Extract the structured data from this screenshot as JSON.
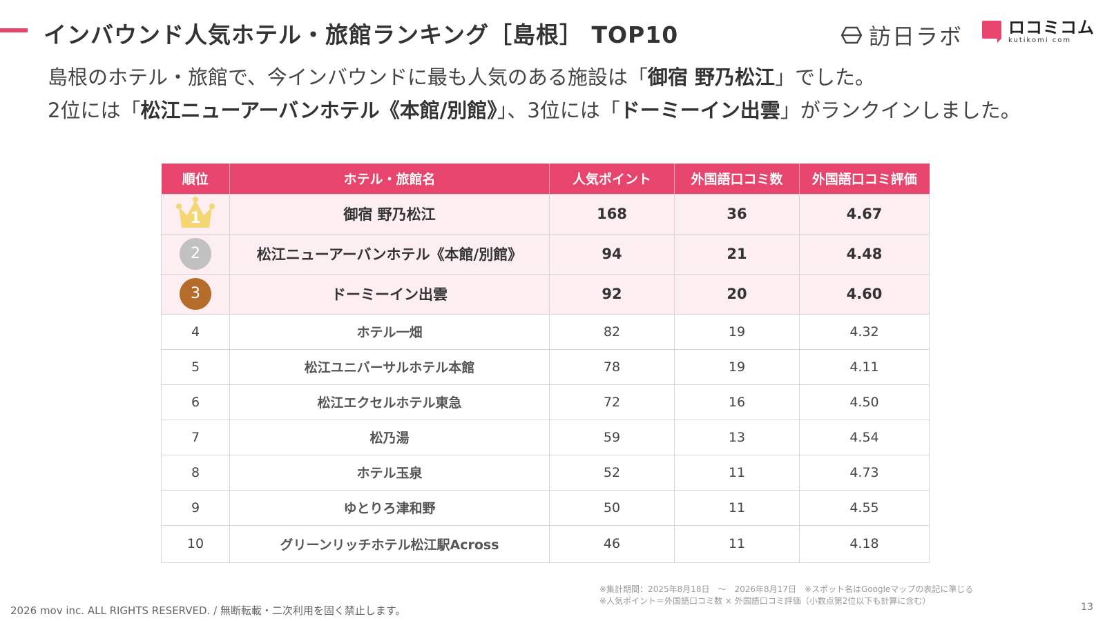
{
  "title": "インバウンド人気ホテル・旅館ランキング［島根］ TOP10",
  "logo_houninchi": "訪日ラボ",
  "logo_kutikomi": {
    "main": "ロコミコム",
    "sub": "kutikomi com"
  },
  "intro": {
    "line1_prefix": "島根のホテル・旅館で、今インバウンドに最も人気のある施設は「",
    "first_place": "御宿 野乃松江",
    "line1_suffix": "」でした。",
    "line2_prefix": "2位には「",
    "second_place": "松江ニューアーバンホテル《本館/別館》",
    "line2_mid": "」、3位には「",
    "third_place": "ドーミーイン出雲",
    "line2_suffix": "」がランクインしました。"
  },
  "table": {
    "headers": [
      "順位",
      "ホテル・旅館名",
      "人気ポイント",
      "外国語口コミ数",
      "外国語口コミ評価"
    ],
    "rows": [
      {
        "rank": "1",
        "name": "御宿 野乃松江",
        "points": "168",
        "reviews": "36",
        "rating": "4.67"
      },
      {
        "rank": "2",
        "name": "松江ニューアーバンホテル《本館/別館》",
        "points": "94",
        "reviews": "21",
        "rating": "4.48"
      },
      {
        "rank": "3",
        "name": "ドーミーイン出雲",
        "points": "92",
        "reviews": "20",
        "rating": "4.60"
      },
      {
        "rank": "4",
        "name": "ホテル一畑",
        "points": "82",
        "reviews": "19",
        "rating": "4.32"
      },
      {
        "rank": "5",
        "name": "松江ユニバーサルホテル本館",
        "points": "78",
        "reviews": "19",
        "rating": "4.11"
      },
      {
        "rank": "6",
        "name": "松江エクセルホテル東急",
        "points": "72",
        "reviews": "16",
        "rating": "4.50"
      },
      {
        "rank": "7",
        "name": "松乃湯",
        "points": "59",
        "reviews": "13",
        "rating": "4.54"
      },
      {
        "rank": "8",
        "name": "ホテル玉泉",
        "points": "52",
        "reviews": "11",
        "rating": "4.73"
      },
      {
        "rank": "9",
        "name": "ゆとりろ津和野",
        "points": "50",
        "reviews": "11",
        "rating": "4.55"
      },
      {
        "rank": "10",
        "name": "グリーンリッチホテル松江駅Across",
        "points": "46",
        "reviews": "11",
        "rating": "4.18"
      }
    ]
  },
  "notes": {
    "line1": "※集計期間：2025年8月18日　〜　2026年8月17日　※スポット名はGoogleマップの表記に準じる",
    "line2": "※人気ポイント＝外国語口コミ数 × 外国語口コミ評価（小数点第2位以下も計算に含む）"
  },
  "copyright": "2026 mov inc. ALL RIGHTS RESERVED. / 無断転載・二次利用を固く禁止します。",
  "page_number": "13",
  "colors": {
    "accent": "#e8456e",
    "top3_row_bg": "#fdeef2",
    "gold": "#f4d774",
    "silver": "#c1c1c1",
    "bronze": "#b56c2a"
  }
}
